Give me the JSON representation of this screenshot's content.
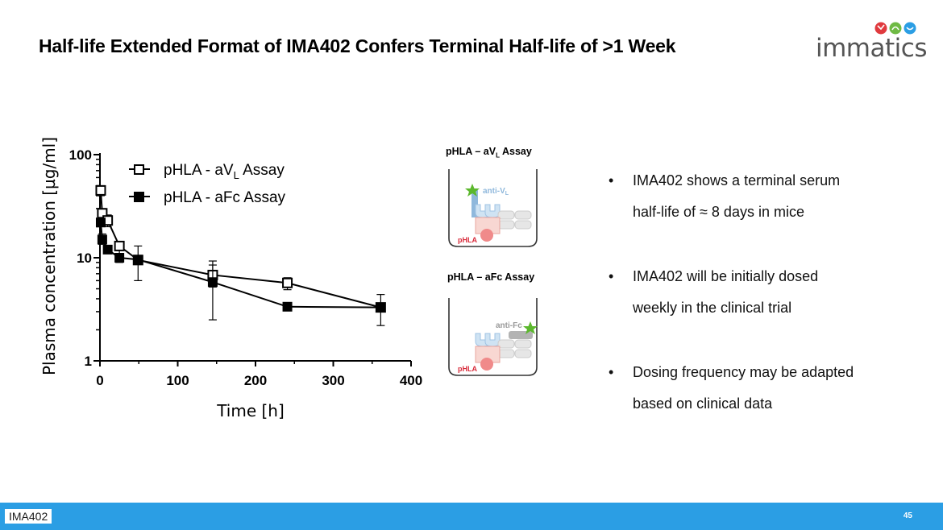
{
  "slide": {
    "title": "Half-life Extended Format of IMA402 Confers Terminal Half-life of >1 Week",
    "logo_text": "immatics",
    "footer_label": "IMA402",
    "page_number": "45"
  },
  "colors": {
    "footer": "#2b9ee4",
    "logo_red": "#e03a3e",
    "logo_green": "#6fba44",
    "logo_blue": "#2b9ee4",
    "star": "#5cb82e",
    "phla": "#e84a5f"
  },
  "diagrams": [
    {
      "title_main": "pHLA – aV",
      "title_sub": "L",
      "title_end": " Assay",
      "antibody_label": "anti-V",
      "antibody_sub": "L",
      "phla_label": "pHLA"
    },
    {
      "title_main": "pHLA – aFc Assay",
      "antibody_label": "anti-Fc",
      "phla_label": "pHLA"
    }
  ],
  "bullets": [
    {
      "marker": "•",
      "line1": "IMA402 shows a terminal serum",
      "line2": "half-life of ≈ 8 days in mice"
    },
    {
      "marker": "•",
      "line1": "IMA402 will be initially dosed",
      "line2": "weekly in the clinical trial"
    },
    {
      "marker": "•",
      "line1": "Dosing frequency may be adapted",
      "line2": "based on clinical data"
    }
  ],
  "chart_data": {
    "type": "line",
    "title": "",
    "xlabel": "Time [h]",
    "ylabel": "Plasma concentration [µg/ml]",
    "xlim": [
      0,
      400
    ],
    "ylim": [
      1,
      100
    ],
    "yscale": "log",
    "xticks": [
      "0",
      "100",
      "200",
      "300",
      "400"
    ],
    "yticks": [
      "1",
      "10",
      "100"
    ],
    "legend_position": "top-left",
    "series": [
      {
        "name": "pHLA - aVL Assay",
        "name_main": "pHLA - aV",
        "name_sub": "L",
        "name_end": " Assay",
        "marker": "open-square",
        "x": [
          1,
          3,
          10,
          25,
          49,
          145,
          241,
          361
        ],
        "y": [
          45,
          27,
          23,
          13,
          9.5,
          6.8,
          5.7,
          3.3
        ],
        "err_low": [
          40,
          24,
          20,
          11,
          6,
          2.5,
          4.9,
          2.2
        ],
        "err_high": [
          50,
          30,
          26,
          14,
          13,
          9.3,
          6.4,
          4.4
        ]
      },
      {
        "name": "pHLA - aFc Assay",
        "marker": "filled-square",
        "x": [
          1,
          3,
          10,
          25,
          49,
          145,
          241,
          361
        ],
        "y": [
          22,
          15,
          12,
          10,
          9.6,
          5.8,
          3.35,
          3.3
        ],
        "err_low": [
          20,
          13.5,
          11,
          9,
          8.6,
          5.2,
          3.1,
          3.1
        ],
        "err_high": [
          24,
          17,
          13,
          11,
          10.5,
          8.5,
          3.6,
          3.5
        ]
      }
    ]
  }
}
